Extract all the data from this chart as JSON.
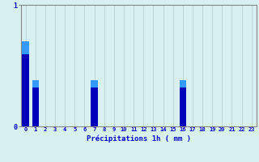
{
  "hours": [
    0,
    1,
    2,
    3,
    4,
    5,
    6,
    7,
    8,
    9,
    10,
    11,
    12,
    13,
    14,
    15,
    16,
    17,
    18,
    19,
    20,
    21,
    22,
    23
  ],
  "values": [
    0.7,
    0.38,
    0.0,
    0.0,
    0.0,
    0.0,
    0.0,
    0.38,
    0.0,
    0.0,
    0.0,
    0.0,
    0.0,
    0.0,
    0.0,
    0.0,
    0.38,
    0.0,
    0.0,
    0.0,
    0.0,
    0.0,
    0.0,
    0.0
  ],
  "bar_color": "#0000bb",
  "bar_color_light": "#3399ff",
  "background_color": "#d8f0f0",
  "grid_color_h": "#e8b0b0",
  "grid_color_v": "#b8d0d0",
  "xlabel": "Précipitations 1h ( mm )",
  "xlabel_color": "#0000cc",
  "tick_color": "#0000cc",
  "ylim": [
    0,
    1.0
  ],
  "yticks": [
    0,
    1
  ],
  "figsize": [
    3.2,
    2.0
  ],
  "dpi": 100
}
